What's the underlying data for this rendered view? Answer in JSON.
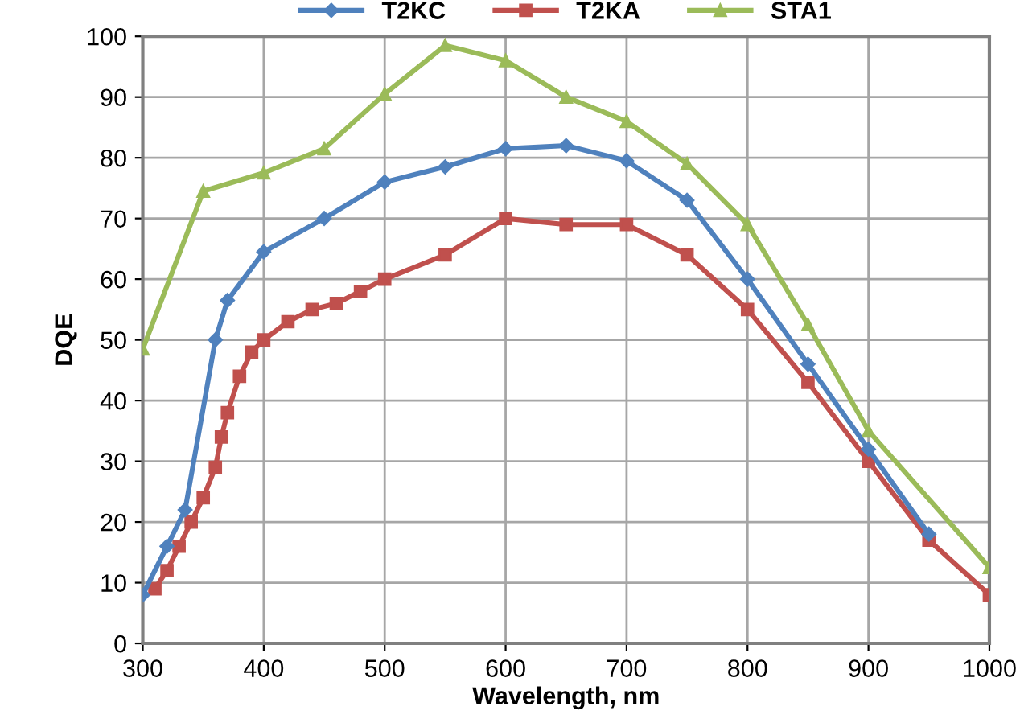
{
  "chart_data": {
    "type": "line",
    "xlabel": "Wavelength, nm",
    "ylabel": "DQE",
    "xlim": [
      300,
      1000
    ],
    "ylim": [
      0,
      100
    ],
    "xticks": [
      300,
      400,
      500,
      600,
      700,
      800,
      900,
      1000
    ],
    "yticks": [
      0,
      10,
      20,
      30,
      40,
      50,
      60,
      70,
      80,
      90,
      100
    ],
    "grid": true,
    "legend": "top",
    "series": [
      {
        "name": "T2KC",
        "color": "#4f81bd",
        "marker": "diamond",
        "x": [
          300,
          320,
          335,
          360,
          370,
          400,
          450,
          500,
          550,
          600,
          650,
          700,
          750,
          800,
          850,
          900,
          950
        ],
        "values": [
          8,
          16,
          22,
          50,
          56.5,
          64.5,
          70,
          76,
          78.5,
          81.5,
          82,
          79.5,
          73,
          60,
          46,
          32,
          18
        ]
      },
      {
        "name": "T2KA",
        "color": "#c0504d",
        "marker": "square",
        "x": [
          310,
          320,
          330,
          340,
          350,
          360,
          365,
          370,
          380,
          390,
          400,
          420,
          440,
          460,
          480,
          500,
          550,
          600,
          650,
          700,
          750,
          800,
          850,
          900,
          950,
          1000
        ],
        "values": [
          9,
          12,
          16,
          20,
          24,
          29,
          34,
          38,
          44,
          48,
          50,
          53,
          55,
          56,
          58,
          60,
          64,
          70,
          69,
          69,
          64,
          55,
          43,
          30,
          17,
          8
        ]
      },
      {
        "name": "STA1",
        "color": "#9bbb59",
        "marker": "triangle",
        "x": [
          300,
          350,
          400,
          450,
          500,
          550,
          600,
          650,
          700,
          750,
          800,
          850,
          900,
          1000
        ],
        "values": [
          48.5,
          74.5,
          77.5,
          81.5,
          90.5,
          98.5,
          96,
          90,
          86,
          79,
          69,
          52.5,
          35,
          12.5
        ]
      }
    ]
  }
}
